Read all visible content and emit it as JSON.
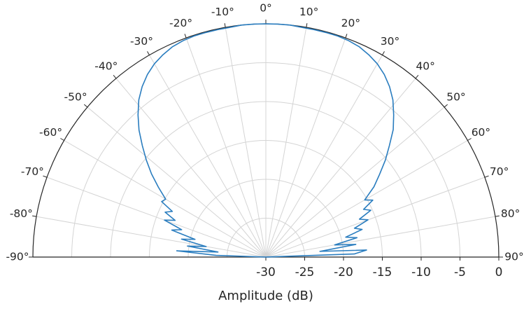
{
  "chart_data": {
    "type": "polar_line",
    "theta_range_deg": [
      -90,
      90
    ],
    "zero_direction": "top",
    "theta_ticks": [
      -90,
      -80,
      -70,
      -60,
      -50,
      -40,
      -30,
      -20,
      -10,
      0,
      10,
      20,
      30,
      40,
      50,
      60,
      70,
      80,
      90
    ],
    "theta_tick_labels": [
      "-90°",
      "-80°",
      "-70°",
      "-60°",
      "-50°",
      "-40°",
      "-30°",
      "-20°",
      "-10°",
      "0°",
      "10°",
      "20°",
      "30°",
      "40°",
      "50°",
      "60°",
      "70°",
      "80°",
      "90°"
    ],
    "r_range": [
      -30,
      0
    ],
    "r_ticks": [
      -30,
      -25,
      -20,
      -15,
      -10,
      -5,
      0
    ],
    "r_tick_labels": [
      "-30",
      "-25",
      "-20",
      "-15",
      "-10",
      "-5",
      "0"
    ],
    "xlabel": "Amplitude (dB)",
    "grid": true,
    "series": [
      {
        "color": "#2a7dbf",
        "theta": [
          -88,
          -86,
          -84,
          -82,
          -80,
          -78,
          -76,
          -74,
          -72,
          -70,
          -68,
          -66,
          -64,
          -62,
          -60,
          -57,
          -54,
          -51,
          -48,
          -45,
          -42,
          -39,
          -36,
          -33,
          -30,
          -27,
          -24,
          -21,
          -18,
          -15,
          -12,
          -9,
          -6,
          -3,
          0,
          3,
          6,
          9,
          12,
          15,
          18,
          21,
          24,
          27,
          30,
          33,
          36,
          39,
          42,
          45,
          48,
          51,
          54,
          57,
          60,
          62,
          64,
          66,
          68,
          70,
          72,
          74,
          76,
          78,
          80,
          82,
          84,
          86,
          88
        ],
        "r": [
          -23.6,
          -18.5,
          -23.8,
          -19.8,
          -22.2,
          -18.9,
          -20.6,
          -17.4,
          -18.6,
          -16.1,
          -17.4,
          -15.8,
          -16.6,
          -14.8,
          -15.1,
          -13.5,
          -11.8,
          -10.2,
          -8.6,
          -6.9,
          -5.4,
          -4.0,
          -2.9,
          -2.0,
          -1.3,
          -0.8,
          -0.4,
          -0.2,
          -0.1,
          -0.1,
          -0.1,
          -0.1,
          0.0,
          0.0,
          0.0,
          0.0,
          0.0,
          -0.1,
          -0.1,
          -0.1,
          -0.1,
          -0.2,
          -0.4,
          -0.8,
          -1.3,
          -2.0,
          -2.9,
          -4.0,
          -5.4,
          -6.8,
          -8.6,
          -10.2,
          -11.9,
          -13.4,
          -15.3,
          -14.4,
          -16.0,
          -15.2,
          -17.0,
          -16.0,
          -18.0,
          -17.1,
          -19.4,
          -18.0,
          -21.0,
          -18.3,
          -23.0,
          -17.0,
          -18.6
        ]
      }
    ]
  }
}
